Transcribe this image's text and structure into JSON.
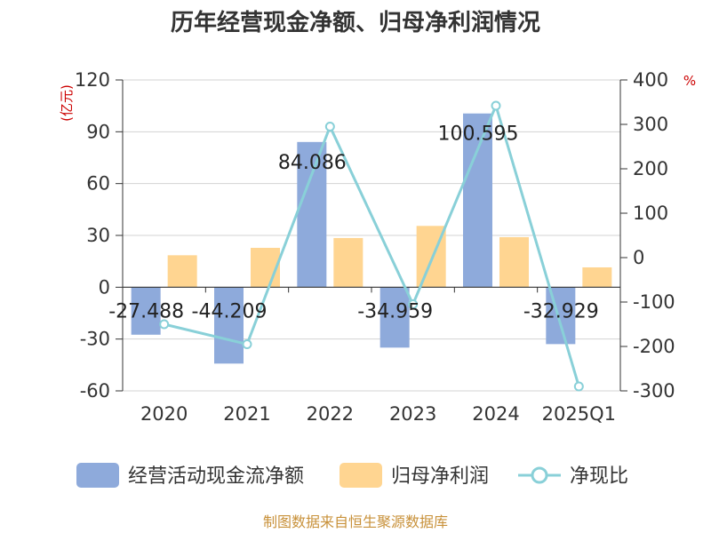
{
  "chart_data": {
    "type": "bar",
    "title": "历年经营现金净额、归母净利润情况",
    "categories": [
      "2020",
      "2021",
      "2022",
      "2023",
      "2024",
      "2025Q1"
    ],
    "left_axis": {
      "unit_label": "(亿元)",
      "ylim": [
        -60,
        120
      ],
      "ticks": [
        -60,
        -30,
        0,
        30,
        60,
        90,
        120
      ]
    },
    "right_axis": {
      "unit_label": "%",
      "ylim": [
        -300,
        400
      ],
      "ticks": [
        -300,
        -200,
        -100,
        0,
        100,
        200,
        300,
        400
      ]
    },
    "series": [
      {
        "name": "经营活动现金流净额",
        "type": "bar",
        "axis": "left",
        "color": "#8eaadb",
        "values": [
          -27.488,
          -44.209,
          84.086,
          -34.959,
          100.595,
          -32.929
        ],
        "labels": [
          "-27.488",
          "-44.209",
          "84.086",
          "-34.959",
          "100.595",
          "-32.929"
        ]
      },
      {
        "name": "归母净利润",
        "type": "bar",
        "axis": "left",
        "color": "#ffd591",
        "values": [
          18.5,
          22.8,
          28.5,
          35.5,
          29.0,
          11.5
        ]
      },
      {
        "name": "净现比",
        "type": "line",
        "axis": "right",
        "color": "#89d0d8",
        "values": [
          -150,
          -195,
          295,
          -105,
          342,
          -290
        ]
      }
    ],
    "grid": true,
    "legend_position": "bottom"
  },
  "source": "制图数据来自恒生聚源数据库"
}
